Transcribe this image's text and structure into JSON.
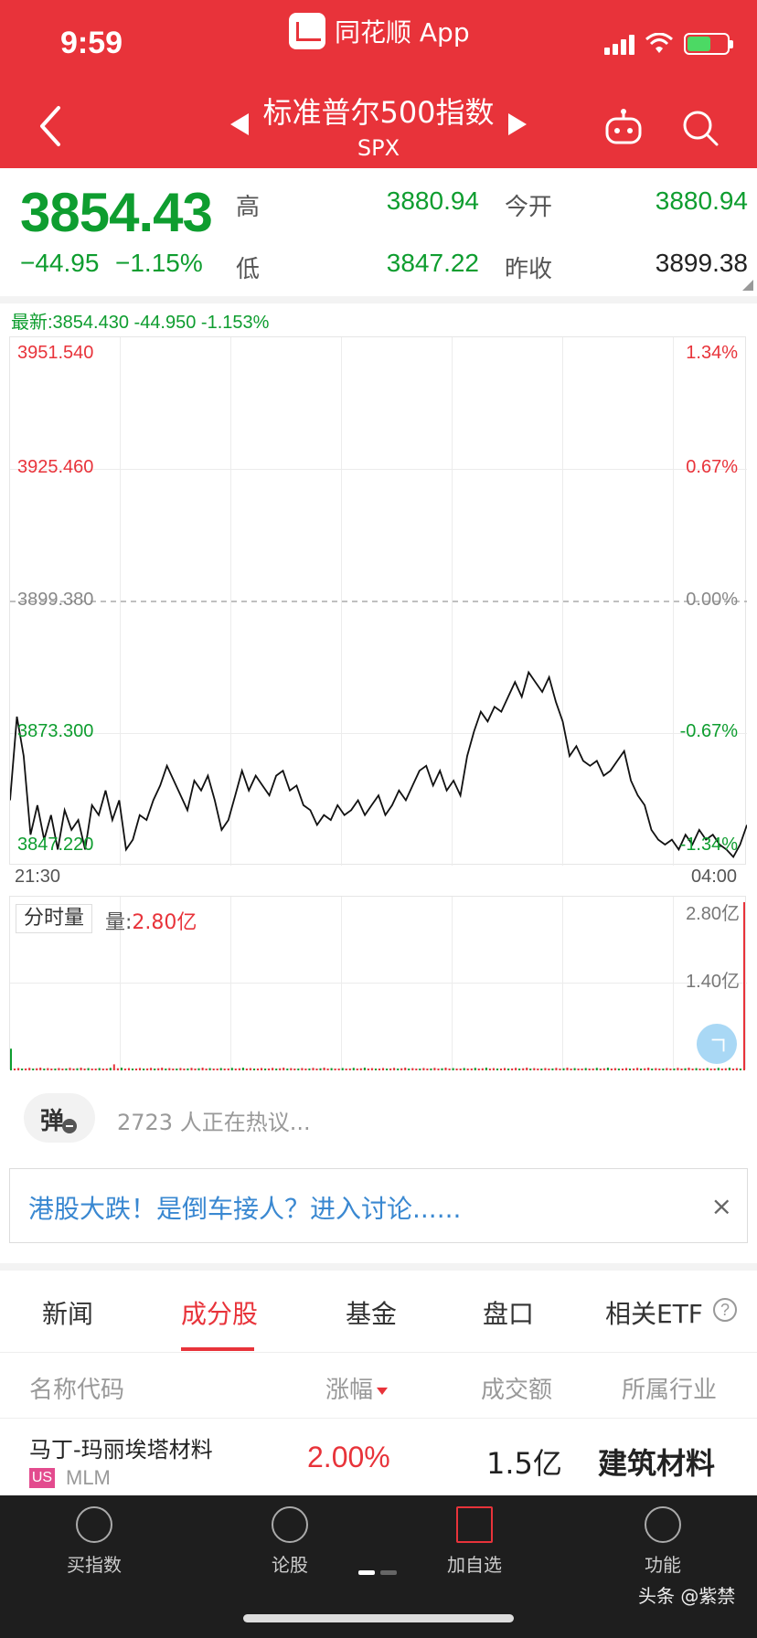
{
  "status": {
    "time": "9:59",
    "source_app": "同花顺 App"
  },
  "header": {
    "title": "标准普尔500指数",
    "code": "SPX"
  },
  "quote": {
    "price": "3854.43",
    "change": "−44.95",
    "change_pct": "−1.15%",
    "high_label": "高",
    "high": "3880.94",
    "low_label": "低",
    "low": "3847.22",
    "open_label": "今开",
    "open": "3880.94",
    "prev_close_label": "昨收",
    "prev_close": "3899.38"
  },
  "chart": {
    "latest": "最新:3854.430  -44.950  -1.153%",
    "y_left": [
      "3951.540",
      "3925.460",
      "3899.380",
      "3873.300",
      "3847.220"
    ],
    "y_right": [
      "1.34%",
      "0.67%",
      "0.00%",
      "-0.67%",
      "-1.34%"
    ],
    "time_start": "21:30",
    "time_end": "04:00",
    "volume_tab": "分时量",
    "volume_label": "量:",
    "volume_value": "2.80亿",
    "volume_axis_top": "2.80亿",
    "volume_axis_mid": "1.40亿"
  },
  "chart_data": {
    "type": "line",
    "title": "",
    "xlabel": "",
    "ylabel": "",
    "x_range": [
      "21:30",
      "04:00"
    ],
    "ylim": [
      3847.22,
      3951.54
    ],
    "reference_line": 3899.38,
    "series": [
      {
        "values": [
          3859,
          3876,
          3868,
          3852,
          3858,
          3851,
          3856,
          3849,
          3857,
          3853,
          3855,
          3849,
          3858,
          3856,
          3861,
          3855,
          3859,
          3849,
          3851,
          3856,
          3855,
          3859,
          3862,
          3866,
          3863,
          3860,
          3857,
          3863,
          3861,
          3864,
          3859,
          3853,
          3855,
          3860,
          3865,
          3861,
          3864,
          3862,
          3860,
          3864,
          3865,
          3861,
          3862,
          3858,
          3857,
          3854,
          3856,
          3855,
          3858,
          3856,
          3857,
          3859,
          3856,
          3858,
          3860,
          3856,
          3858,
          3861,
          3859,
          3862,
          3865,
          3866,
          3862,
          3865,
          3861,
          3863,
          3860,
          3868,
          3873,
          3877,
          3875,
          3878,
          3877,
          3880,
          3883,
          3880,
          3885,
          3883,
          3881,
          3884,
          3879,
          3875,
          3868,
          3870,
          3867,
          3866,
          3867,
          3864,
          3865,
          3867,
          3869,
          3863,
          3860,
          3858,
          3853,
          3851,
          3850,
          3851,
          3849,
          3852,
          3850,
          3853,
          3851,
          3852,
          3850,
          3849,
          3847.5,
          3850,
          3854
        ]
      }
    ],
    "volume": {
      "unit": "亿",
      "ylim": [
        0,
        2.8
      ],
      "note_values": [
        0.36,
        0.05,
        2.8
      ]
    }
  },
  "discussion": {
    "danmu_label": "弹",
    "people_text": "2723 人正在热议...",
    "banner_text": "港股大跌！是倒车接人？进入讨论......",
    "banner_close": "×"
  },
  "tabs": [
    "新闻",
    "成分股",
    "基金",
    "盘口",
    "相关ETF"
  ],
  "active_tab": "成分股",
  "table": {
    "headers": [
      "名称代码",
      "涨幅",
      "成交额",
      "所属行业"
    ],
    "rows": [
      {
        "name": "马丁-玛丽埃塔材料",
        "market": "US",
        "code": "MLM",
        "pct": "2.00%",
        "amount": "1.5亿",
        "industry": "建筑材料"
      }
    ]
  },
  "bottom_nav": {
    "items": [
      "买指数",
      "论股",
      "加自选",
      "功能"
    ],
    "watermark": "头条 @紫禁"
  },
  "colors": {
    "brand_red": "#e8333a",
    "down_green": "#0e9d2f",
    "link_blue": "#3a88d1"
  }
}
